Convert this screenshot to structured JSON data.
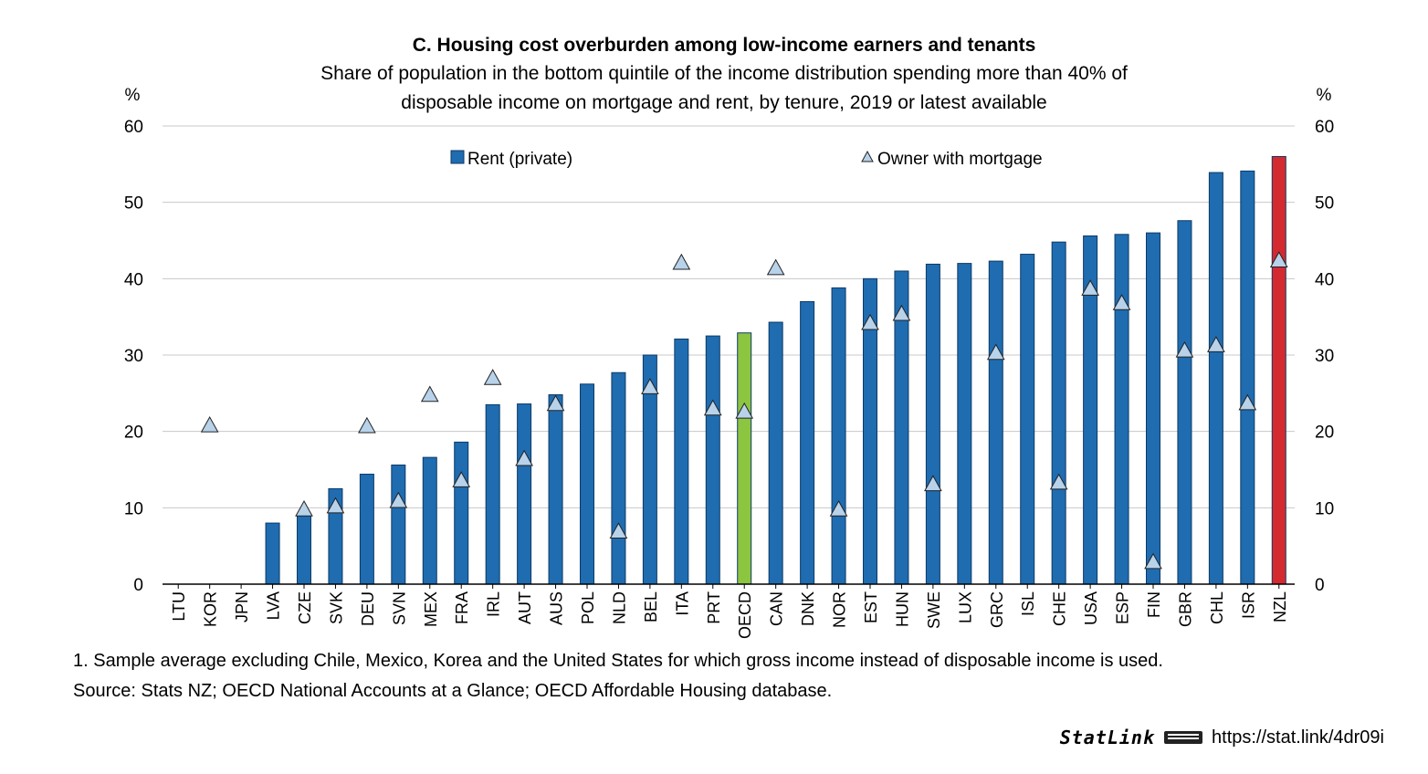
{
  "chart_data": {
    "type": "bar",
    "title": "C. Housing cost overburden among low-income earners and tenants",
    "subtitle_lines": [
      "Share of population in the bottom quintile of the income distribution spending more than 40% of",
      "disposable income on mortgage and rent, by tenure, 2019 or latest available"
    ],
    "ylabel_left": "%",
    "ylabel_right": "%",
    "ylim": [
      0,
      60
    ],
    "yticks": [
      0,
      10,
      20,
      30,
      40,
      50,
      60
    ],
    "grid": true,
    "legend_placement": "top",
    "categories": [
      "LTU",
      "KOR",
      "JPN",
      "LVA",
      "CZE",
      "SVK",
      "DEU",
      "SVN",
      "MEX",
      "FRA",
      "IRL",
      "AUT",
      "AUS",
      "POL",
      "NLD",
      "BEL",
      "ITA",
      "PRT",
      "OECD",
      "CAN",
      "DNK",
      "NOR",
      "EST",
      "HUN",
      "SWE",
      "LUX",
      "GRC",
      "ISL",
      "CHE",
      "USA",
      "ESP",
      "FIN",
      "GBR",
      "CHL",
      "ISR",
      "NZL"
    ],
    "series": [
      {
        "name": "Rent (private)",
        "type": "bar",
        "color": "#1f6cb0",
        "values": [
          null,
          null,
          null,
          8.0,
          9.0,
          12.5,
          14.4,
          15.6,
          16.6,
          18.6,
          23.5,
          23.6,
          24.8,
          26.2,
          27.7,
          30.0,
          32.1,
          32.5,
          32.9,
          34.3,
          37.0,
          38.8,
          40.0,
          41.0,
          41.9,
          42.0,
          42.3,
          43.2,
          44.8,
          45.6,
          45.8,
          46.0,
          47.6,
          53.9,
          54.1,
          56.0
        ]
      },
      {
        "name": "Owner with mortgage",
        "type": "marker",
        "marker": "triangle",
        "color": "#b8d2ea",
        "values": [
          null,
          20.8,
          null,
          null,
          9.8,
          10.2,
          20.7,
          10.9,
          24.8,
          13.6,
          27.0,
          16.4,
          23.6,
          null,
          6.9,
          25.8,
          42.1,
          23.0,
          22.6,
          41.4,
          null,
          9.8,
          34.2,
          35.4,
          13.1,
          null,
          30.3,
          null,
          13.3,
          38.7,
          36.8,
          2.9,
          30.6,
          31.3,
          23.7,
          42.4
        ]
      }
    ],
    "highlight_colors": {
      "OECD": "#8cc540",
      "NZL": "#d42a2f"
    },
    "bar_outline_color": "#0d3a66"
  },
  "notes": {
    "footnote": "1. Sample average excluding Chile, Mexico, Korea and the United States for which gross income instead of disposable income is used.",
    "source": "Source: Stats NZ; OECD National Accounts at a Glance; OECD Affordable Housing database."
  },
  "statlink": {
    "brand": "StatLink",
    "url": "https://stat.link/4dr09i"
  }
}
